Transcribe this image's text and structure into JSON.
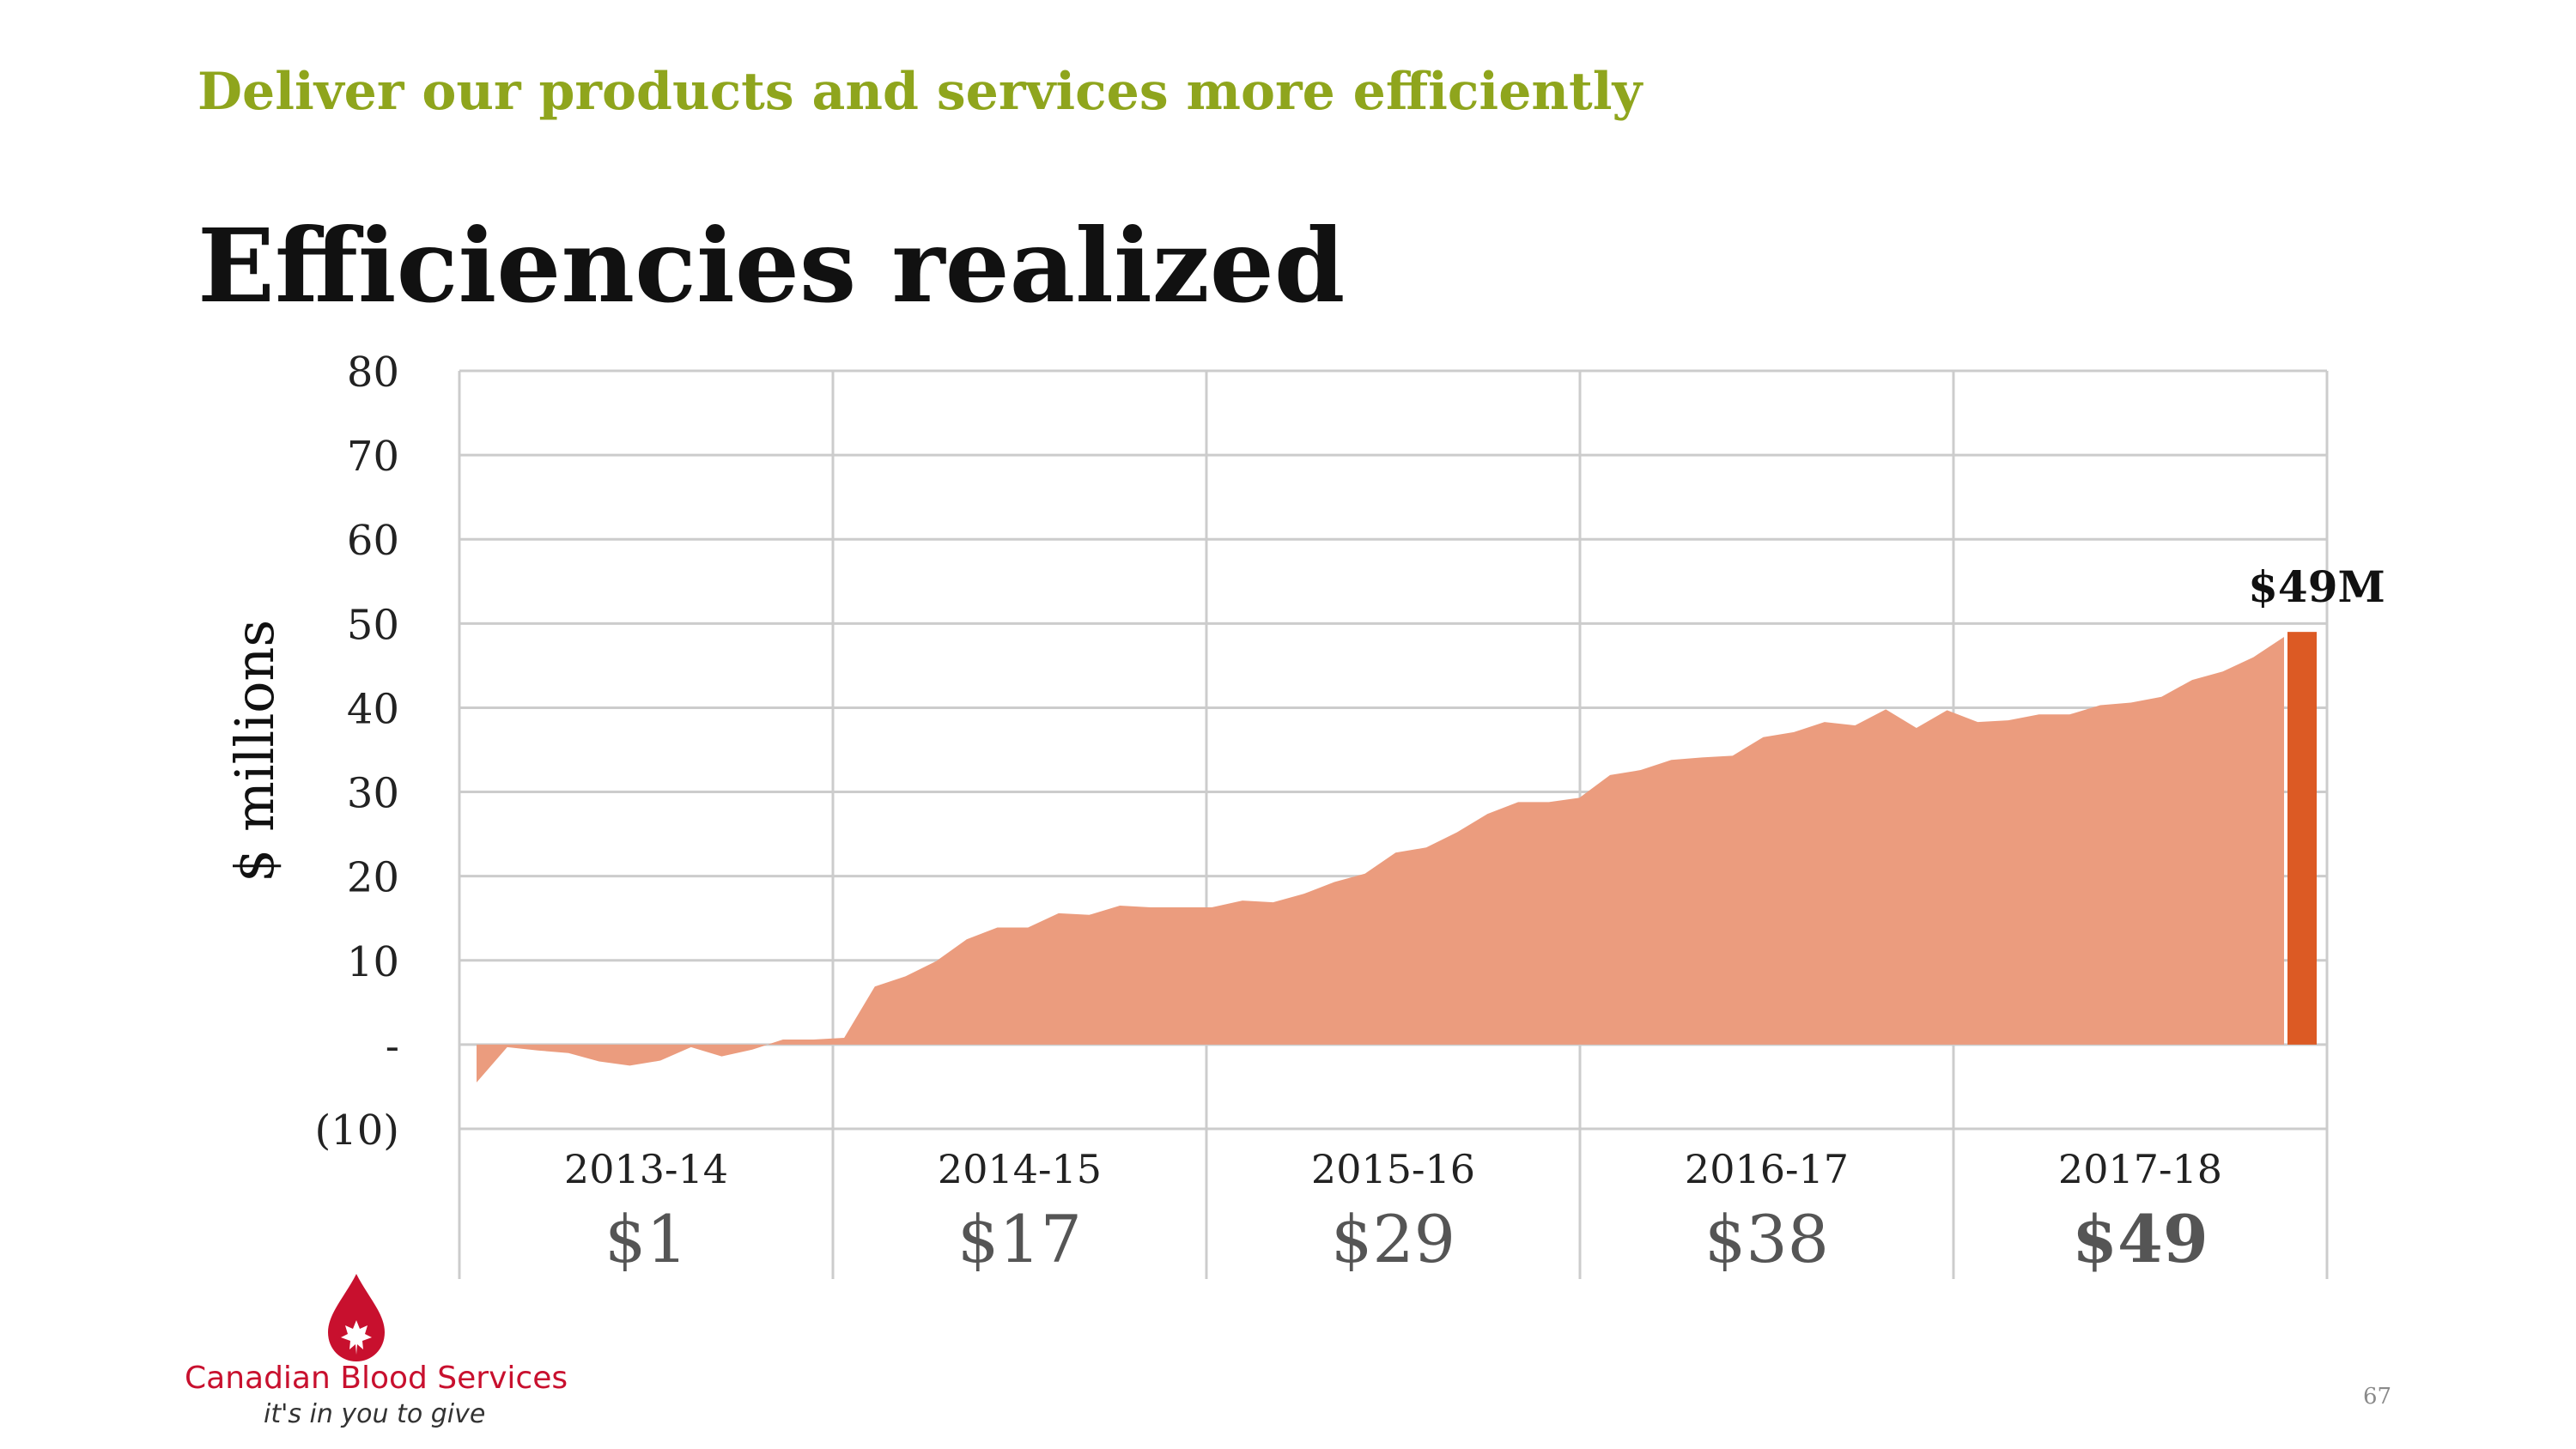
{
  "header": {
    "subtitle": "Deliver our products and services more efficiently",
    "title": "Efficiencies realized"
  },
  "footer": {
    "logo_name": "Canadian Blood Services",
    "logo_tagline": "it's in you to give",
    "page_number": "67"
  },
  "colors": {
    "area_fill": "#eb9c7e",
    "final_bar": "#dc5a24",
    "grid": "#cccccc",
    "subtitle": "#8fa51d",
    "brand_red": "#c8102e"
  },
  "chart_data": {
    "type": "area",
    "title": "",
    "xlabel": "",
    "ylabel": "$ millions",
    "ylim": [
      -10,
      80
    ],
    "y_ticks": [
      {
        "value": 80,
        "label": "80"
      },
      {
        "value": 70,
        "label": "70"
      },
      {
        "value": 60,
        "label": "60"
      },
      {
        "value": 50,
        "label": "50"
      },
      {
        "value": 40,
        "label": "40"
      },
      {
        "value": 30,
        "label": "30"
      },
      {
        "value": 20,
        "label": "20"
      },
      {
        "value": 10,
        "label": "10"
      },
      {
        "value": 0,
        "label": "-"
      },
      {
        "value": -10,
        "label": "(10)"
      }
    ],
    "grid": true,
    "periods": [
      {
        "label": "2013-14",
        "total": "$1",
        "emphasis": false
      },
      {
        "label": "2014-15",
        "total": "$17",
        "emphasis": false
      },
      {
        "label": "2015-16",
        "total": "$29",
        "emphasis": false
      },
      {
        "label": "2016-17",
        "total": "$38",
        "emphasis": false
      },
      {
        "label": "2017-18",
        "total": "$49",
        "emphasis": true
      }
    ],
    "series": [
      {
        "type": "area",
        "values": [
          -4.5,
          -0.3,
          -0.7,
          -1.0,
          -2.0,
          -2.5,
          -1.9,
          -0.3,
          -1.4,
          -0.6,
          0.6,
          0.6,
          0.8,
          6.9,
          8.1,
          9.9,
          12.5,
          13.9,
          13.9,
          15.6,
          15.4,
          16.5,
          16.3,
          16.3,
          16.3,
          17.1,
          16.9,
          17.9,
          19.3,
          20.3,
          22.8,
          23.4,
          25.2,
          27.4,
          28.8,
          28.8,
          29.3,
          32.0,
          32.6,
          33.8,
          34.1,
          34.3,
          36.5,
          37.1,
          38.3,
          37.9,
          39.8,
          37.6,
          39.7,
          38.3,
          38.5,
          39.2,
          39.2,
          40.3,
          40.6,
          41.3,
          43.3,
          44.3,
          46.0,
          48.4
        ]
      },
      {
        "type": "bar",
        "value": 49,
        "label": "$49M"
      }
    ]
  }
}
